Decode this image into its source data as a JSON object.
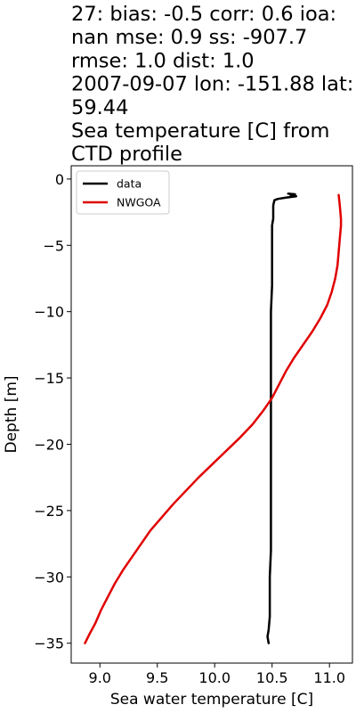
{
  "chart_data": {
    "type": "line",
    "title_lines": [
      "27: bias: -0.5  corr: 0.6  ioa:",
      "nan  mse: 0.9  ss: -907.7",
      "rmse: 1.0  dist: 1.0",
      "2007-09-07 lon: -151.88 lat:",
      "59.44",
      "Sea temperature [C] from",
      "CTD profile"
    ],
    "xlabel": "Sea water temperature [C]",
    "ylabel": "Depth [m]",
    "xlim": [
      8.75,
      11.2
    ],
    "ylim": [
      -36.5,
      1.0
    ],
    "xticks": [
      9.0,
      9.5,
      10.0,
      10.5,
      11.0
    ],
    "xtick_labels": [
      "9.0",
      "9.5",
      "10.0",
      "10.5",
      "11.0"
    ],
    "yticks": [
      0,
      -5,
      -10,
      -15,
      -20,
      -25,
      -30,
      -35
    ],
    "ytick_labels": [
      "0",
      "−5",
      "−10",
      "−15",
      "−20",
      "−25",
      "−30",
      "−35"
    ],
    "legend_position": "top-left",
    "series": [
      {
        "name": "data",
        "color": "#000000",
        "points": [
          [
            10.64,
            -1.1
          ],
          [
            10.7,
            -1.15
          ],
          [
            10.66,
            -1.2
          ],
          [
            10.71,
            -1.3
          ],
          [
            10.62,
            -1.4
          ],
          [
            10.55,
            -1.5
          ],
          [
            10.52,
            -1.6
          ],
          [
            10.51,
            -2.0
          ],
          [
            10.51,
            -3.0
          ],
          [
            10.5,
            -3.5
          ],
          [
            10.5,
            -5.0
          ],
          [
            10.5,
            -8.0
          ],
          [
            10.49,
            -10.0
          ],
          [
            10.49,
            -12.0
          ],
          [
            10.49,
            -15.0
          ],
          [
            10.49,
            -18.0
          ],
          [
            10.49,
            -20.0
          ],
          [
            10.49,
            -22.0
          ],
          [
            10.49,
            -25.0
          ],
          [
            10.49,
            -28.0
          ],
          [
            10.48,
            -30.0
          ],
          [
            10.48,
            -32.0
          ],
          [
            10.48,
            -33.0
          ],
          [
            10.47,
            -34.0
          ],
          [
            10.46,
            -34.5
          ],
          [
            10.47,
            -35.0
          ]
        ]
      },
      {
        "name": "NWGOA",
        "color": "#e00000",
        "points": [
          [
            11.08,
            -1.2
          ],
          [
            11.09,
            -2.0
          ],
          [
            11.1,
            -3.0
          ],
          [
            11.1,
            -3.5
          ],
          [
            11.09,
            -4.5
          ],
          [
            11.08,
            -5.5
          ],
          [
            11.07,
            -6.5
          ],
          [
            11.05,
            -7.5
          ],
          [
            11.02,
            -8.5
          ],
          [
            10.98,
            -9.5
          ],
          [
            10.92,
            -10.5
          ],
          [
            10.85,
            -11.5
          ],
          [
            10.77,
            -12.5
          ],
          [
            10.69,
            -13.5
          ],
          [
            10.62,
            -14.5
          ],
          [
            10.56,
            -15.5
          ],
          [
            10.5,
            -16.5
          ],
          [
            10.42,
            -17.5
          ],
          [
            10.33,
            -18.5
          ],
          [
            10.22,
            -19.5
          ],
          [
            10.1,
            -20.5
          ],
          [
            9.98,
            -21.5
          ],
          [
            9.86,
            -22.5
          ],
          [
            9.75,
            -23.5
          ],
          [
            9.64,
            -24.5
          ],
          [
            9.54,
            -25.5
          ],
          [
            9.44,
            -26.5
          ],
          [
            9.36,
            -27.5
          ],
          [
            9.28,
            -28.5
          ],
          [
            9.2,
            -29.5
          ],
          [
            9.13,
            -30.5
          ],
          [
            9.07,
            -31.5
          ],
          [
            9.01,
            -32.5
          ],
          [
            8.96,
            -33.5
          ],
          [
            8.91,
            -34.3
          ],
          [
            8.87,
            -35.0
          ]
        ]
      }
    ]
  }
}
